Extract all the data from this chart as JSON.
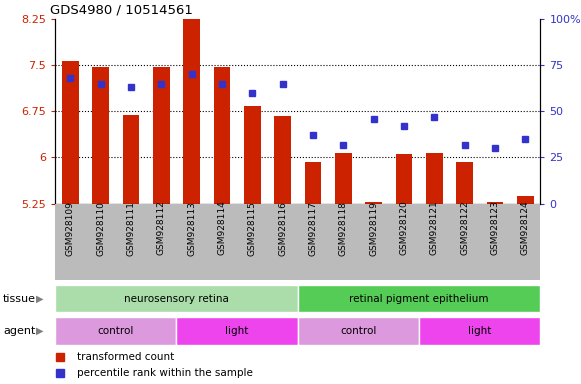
{
  "title": "GDS4980 / 10514561",
  "samples": [
    "GSM928109",
    "GSM928110",
    "GSM928111",
    "GSM928112",
    "GSM928113",
    "GSM928114",
    "GSM928115",
    "GSM928116",
    "GSM928117",
    "GSM928118",
    "GSM928119",
    "GSM928120",
    "GSM928121",
    "GSM928122",
    "GSM928123",
    "GSM928124"
  ],
  "bar_values": [
    7.57,
    7.47,
    6.69,
    7.47,
    8.35,
    7.47,
    6.83,
    6.68,
    5.93,
    6.08,
    5.28,
    6.06,
    6.07,
    5.93,
    5.27,
    5.37
  ],
  "dot_values": [
    68,
    65,
    63,
    65,
    70,
    65,
    60,
    65,
    37,
    32,
    46,
    42,
    47,
    32,
    30,
    35
  ],
  "bar_bottom": 5.25,
  "ylim_left": [
    5.25,
    8.25
  ],
  "ylim_right": [
    0,
    100
  ],
  "yticks_left": [
    5.25,
    6.0,
    6.75,
    7.5,
    8.25
  ],
  "yticks_right": [
    0,
    25,
    50,
    75,
    100
  ],
  "ytick_labels_left": [
    "5.25",
    "6",
    "6.75",
    "7.5",
    "8.25"
  ],
  "ytick_labels_right": [
    "0",
    "25",
    "50",
    "75",
    "100%"
  ],
  "bar_color": "#cc2200",
  "dot_color": "#3333cc",
  "tissue_groups": [
    {
      "label": "neurosensory retina",
      "start": 0,
      "end": 7,
      "color": "#aaddaa"
    },
    {
      "label": "retinal pigment epithelium",
      "start": 8,
      "end": 15,
      "color": "#55cc55"
    }
  ],
  "agent_groups": [
    {
      "label": "control",
      "start": 0,
      "end": 3,
      "color": "#dd99dd"
    },
    {
      "label": "light",
      "start": 4,
      "end": 7,
      "color": "#ee44ee"
    },
    {
      "label": "control",
      "start": 8,
      "end": 11,
      "color": "#dd99dd"
    },
    {
      "label": "light",
      "start": 12,
      "end": 15,
      "color": "#ee44ee"
    }
  ],
  "legend_bar_label": "transformed count",
  "legend_dot_label": "percentile rank within the sample",
  "tissue_label": "tissue",
  "agent_label": "agent",
  "gridline_color": "#000000",
  "xtick_bg_color": "#bbbbbb",
  "fig_bg_color": "#ffffff"
}
